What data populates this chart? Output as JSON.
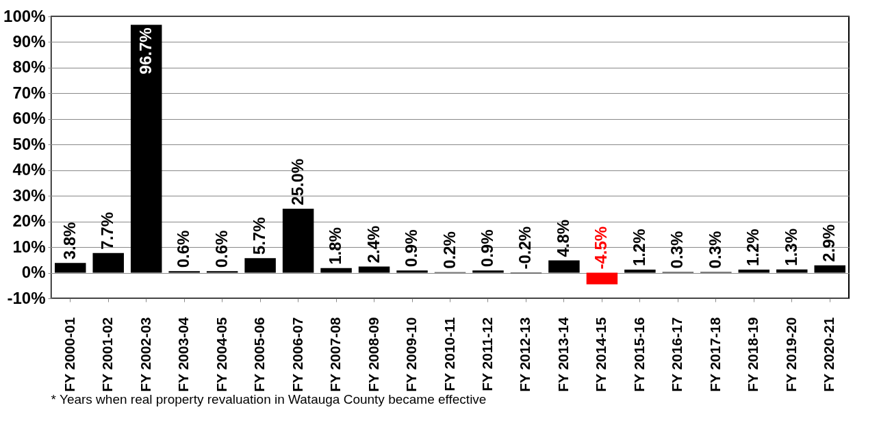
{
  "chart_data": {
    "type": "bar",
    "categories": [
      "FY 2000-01",
      "FY 2001-02",
      "FY 2002-03",
      "FY 2003-04",
      "FY 2004-05",
      "FY 2005-06",
      "FY 2006-07",
      "FY 2007-08",
      "FY 2008-09",
      "FY 2009-10",
      "FY 2010-11",
      "FY 2011-12",
      "FY 2012-13",
      "FY 2013-14",
      "FY 2014-15",
      "FY 2015-16",
      "FY 2016-17",
      "FY 2017-18",
      "FY 2018-19",
      "FY 2019-20",
      "FY 2020-21"
    ],
    "values": [
      3.8,
      7.7,
      96.7,
      0.6,
      0.6,
      5.7,
      25.0,
      1.8,
      2.4,
      0.9,
      0.2,
      0.9,
      -0.2,
      4.8,
      -4.5,
      1.2,
      0.3,
      0.3,
      1.2,
      1.3,
      2.9
    ],
    "colors": [
      "#000000",
      "#000000",
      "#000000",
      "#000000",
      "#000000",
      "#000000",
      "#000000",
      "#000000",
      "#000000",
      "#000000",
      "#000000",
      "#000000",
      "#000000",
      "#000000",
      "#ff0000",
      "#000000",
      "#000000",
      "#000000",
      "#000000",
      "#000000",
      "#000000"
    ],
    "value_labels": [
      "3.8%",
      "7.7%",
      "96.7%",
      "0.6%",
      "0.6%",
      "5.7%",
      "25.0%",
      "1.8%",
      "2.4%",
      "0.9%",
      "0.2%",
      "0.9%",
      "-0.2%",
      "4.8%",
      "-4.5%",
      "1.2%",
      "0.3%",
      "0.3%",
      "1.2%",
      "1.3%",
      "2.9%"
    ],
    "ylim": [
      -10,
      100
    ],
    "yticks": [
      {
        "value": -10,
        "label": "-10%"
      },
      {
        "value": 0,
        "label": "0%"
      },
      {
        "value": 10,
        "label": "10%"
      },
      {
        "value": 20,
        "label": "20%"
      },
      {
        "value": 30,
        "label": "30%"
      },
      {
        "value": 40,
        "label": "40%"
      },
      {
        "value": 50,
        "label": "50%"
      },
      {
        "value": 60,
        "label": "60%"
      },
      {
        "value": 70,
        "label": "70%"
      },
      {
        "value": 80,
        "label": "80%"
      },
      {
        "value": 90,
        "label": "90%"
      },
      {
        "value": 100,
        "label": "100%"
      }
    ],
    "grid": "y",
    "annotations": [
      "* Years when real property revaluation in Watauga County became effective"
    ]
  }
}
